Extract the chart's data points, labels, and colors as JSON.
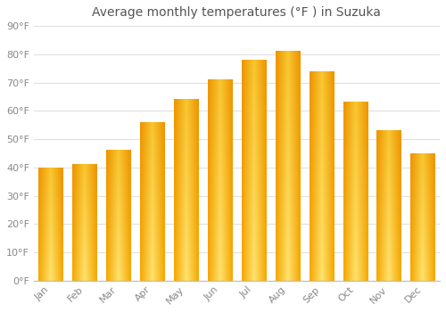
{
  "title": "Average monthly temperatures (°F ) in Suzuka",
  "months": [
    "Jan",
    "Feb",
    "Mar",
    "Apr",
    "May",
    "Jun",
    "Jul",
    "Aug",
    "Sep",
    "Oct",
    "Nov",
    "Dec"
  ],
  "values": [
    40,
    41,
    46,
    56,
    64,
    71,
    78,
    81,
    74,
    63,
    53,
    45
  ],
  "bar_color_center": "#FFD040",
  "bar_color_edge": "#F5A000",
  "ylim": [
    0,
    90
  ],
  "yticks": [
    0,
    10,
    20,
    30,
    40,
    50,
    60,
    70,
    80,
    90
  ],
  "ytick_labels": [
    "0°F",
    "10°F",
    "20°F",
    "30°F",
    "40°F",
    "50°F",
    "60°F",
    "70°F",
    "80°F",
    "90°F"
  ],
  "background_color": "#ffffff",
  "grid_color": "#e0e0e0",
  "title_fontsize": 10,
  "tick_fontsize": 8,
  "figsize": [
    5.0,
    3.5
  ],
  "dpi": 100
}
